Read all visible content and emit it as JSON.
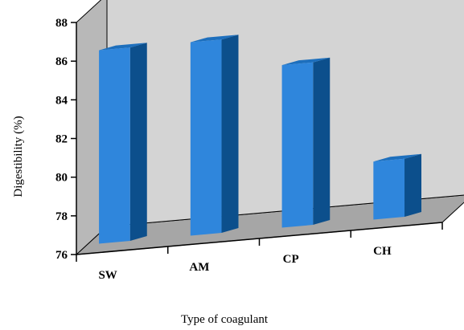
{
  "chart_data": {
    "type": "bar",
    "categories": [
      "SW",
      "AM",
      "CP",
      "CH"
    ],
    "values": [
      86.0,
      86.0,
      84.4,
      79.0
    ],
    "xlabel": "Type of coagulant",
    "ylabel": "Digestibility (%)",
    "ylim": [
      76,
      88
    ],
    "yticks": [
      76,
      78,
      80,
      82,
      84,
      86,
      88
    ],
    "grid": false,
    "legend": "none",
    "style": "3d",
    "colors": {
      "bar_front": "#2f86dc",
      "bar_side": "#0c4f8c",
      "bar_top": "#1d6fbd",
      "back_wall": "#d4d4d4",
      "side_wall": "#b8b8b8",
      "floor": "#a6a6a6"
    }
  }
}
